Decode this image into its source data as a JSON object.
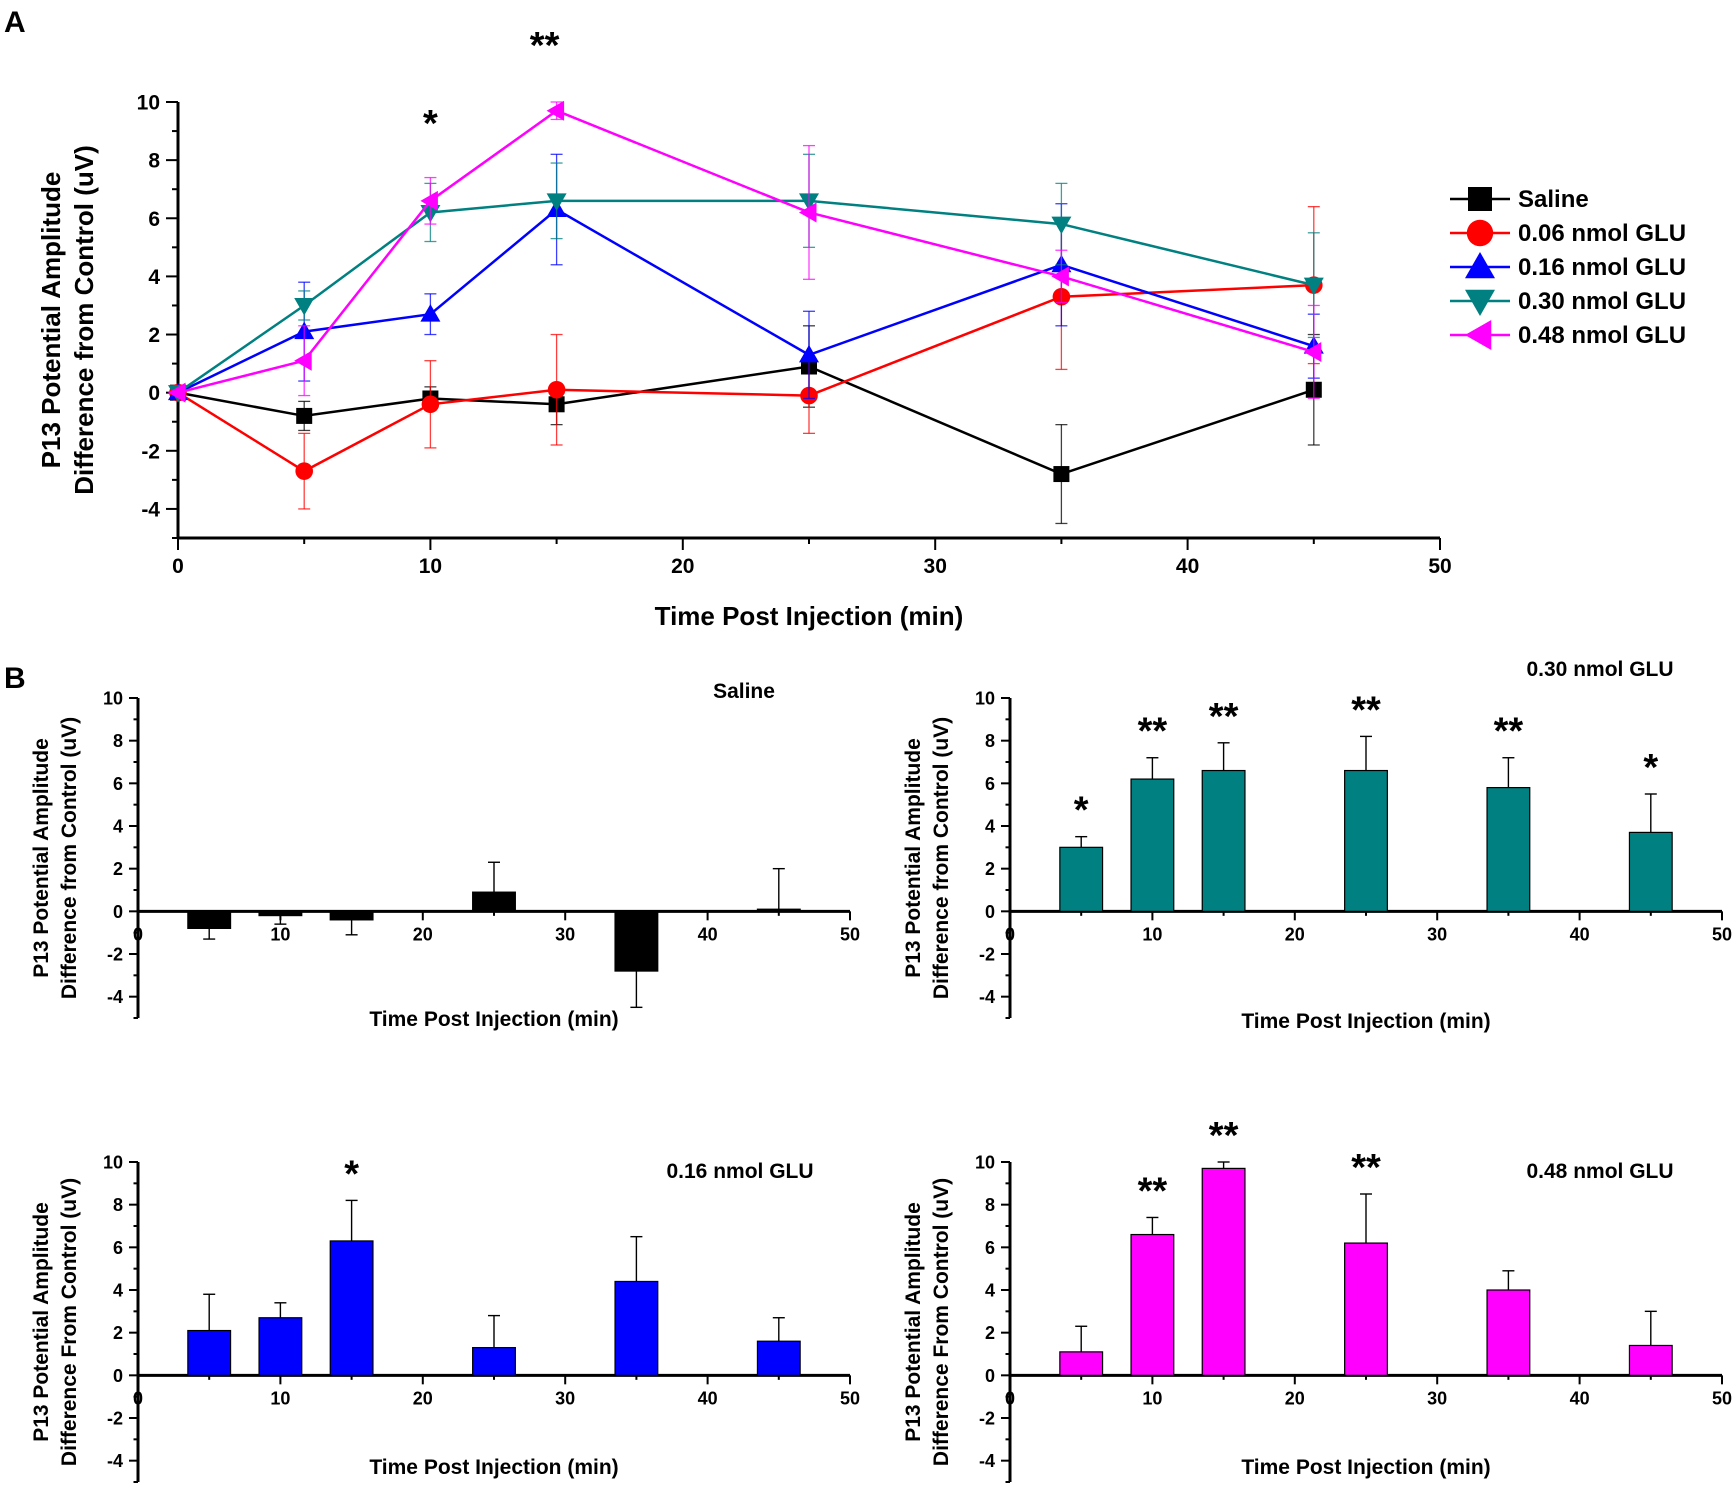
{
  "panel_labels": {
    "a": "A",
    "b": "B"
  },
  "chart_data": [
    {
      "type": "line",
      "panel": "A",
      "title": "",
      "xlabel": "Time Post Injection (min)",
      "ylabel_line1": "P13 Potential Amplitude",
      "ylabel_line2": "Difference from Control (uV)",
      "xlim": [
        0,
        50
      ],
      "ylim": [
        -5,
        10
      ],
      "x_ticks": [
        0,
        10,
        20,
        30,
        40,
        50
      ],
      "y_ticks": [
        -4,
        -2,
        0,
        2,
        4,
        6,
        8,
        10
      ],
      "x": [
        0,
        5,
        10,
        15,
        25,
        35,
        45
      ],
      "series": [
        {
          "name": "Saline",
          "color": "#000000",
          "marker": "square",
          "values": [
            0,
            -0.8,
            -0.2,
            -0.4,
            0.9,
            -2.8,
            0.1
          ],
          "errors": [
            0,
            0.5,
            0.4,
            0.7,
            1.4,
            1.7,
            1.9
          ]
        },
        {
          "name": "0.06 nmol GLU",
          "color": "#ff0000",
          "marker": "circle",
          "values": [
            0,
            -2.7,
            -0.4,
            0.1,
            -0.1,
            3.3,
            3.7
          ],
          "errors": [
            0,
            1.3,
            1.5,
            1.9,
            1.3,
            2.5,
            2.7
          ]
        },
        {
          "name": "0.16 nmol GLU",
          "color": "#0000ff",
          "marker": "triangle-up",
          "values": [
            0,
            2.1,
            2.7,
            6.3,
            1.3,
            4.4,
            1.6
          ],
          "errors": [
            0,
            1.7,
            0.7,
            1.9,
            1.5,
            2.1,
            1.1
          ]
        },
        {
          "name": "0.30 nmol GLU",
          "color": "#008080",
          "marker": "triangle-down",
          "values": [
            0,
            3.0,
            6.2,
            6.6,
            6.6,
            5.8,
            3.7
          ],
          "errors": [
            0,
            0.5,
            1.0,
            1.3,
            1.6,
            1.4,
            1.8
          ]
        },
        {
          "name": "0.48 nmol GLU",
          "color": "#ff00ff",
          "marker": "triangle-left",
          "values": [
            0,
            1.1,
            6.6,
            9.7,
            6.2,
            4.0,
            1.4
          ],
          "errors": [
            0,
            1.2,
            0.8,
            0.3,
            2.3,
            0.9,
            1.6
          ]
        }
      ],
      "annotations": [
        {
          "x": 10,
          "text": "*"
        },
        {
          "x": 15,
          "text": "**"
        }
      ],
      "legend": "right"
    },
    {
      "type": "bar",
      "panel": "B",
      "title": "Saline",
      "color": "#000000",
      "xlabel": "Time Post Injection (min)",
      "ylabel_line1": "P13 Potential Amplitude",
      "ylabel_line2": "Difference from Control (uV)",
      "xlim": [
        0,
        50
      ],
      "ylim": [
        -5,
        10
      ],
      "x_ticks": [
        0,
        10,
        20,
        30,
        40,
        50
      ],
      "y_ticks": [
        -4,
        -2,
        0,
        2,
        4,
        6,
        8,
        10
      ],
      "x": [
        5,
        10,
        15,
        25,
        35,
        45
      ],
      "values": [
        -0.8,
        -0.2,
        -0.4,
        0.9,
        -2.8,
        0.1
      ],
      "errors": [
        0.5,
        0.4,
        0.7,
        1.4,
        1.7,
        1.9
      ],
      "annotations": []
    },
    {
      "type": "bar",
      "panel": "B",
      "title": "0.30 nmol GLU",
      "color": "#008080",
      "xlabel": "Time Post Injection (min)",
      "ylabel_line1": "P13 Potential Amplitude",
      "ylabel_line2": "Difference from Control (uV)",
      "xlim": [
        0,
        50
      ],
      "ylim": [
        -5,
        10
      ],
      "x_ticks": [
        0,
        10,
        20,
        30,
        40,
        50
      ],
      "y_ticks": [
        -4,
        -2,
        0,
        2,
        4,
        6,
        8,
        10
      ],
      "x": [
        5,
        10,
        15,
        25,
        35,
        45
      ],
      "values": [
        3.0,
        6.2,
        6.6,
        6.6,
        5.8,
        3.7
      ],
      "errors": [
        0.5,
        1.0,
        1.3,
        1.6,
        1.4,
        1.8
      ],
      "annotations": [
        {
          "x": 5,
          "text": "*"
        },
        {
          "x": 10,
          "text": "**"
        },
        {
          "x": 15,
          "text": "**"
        },
        {
          "x": 25,
          "text": "**"
        },
        {
          "x": 35,
          "text": "**"
        },
        {
          "x": 45,
          "text": "*"
        }
      ]
    },
    {
      "type": "bar",
      "panel": "B",
      "title": "0.16 nmol GLU",
      "color": "#0000ff",
      "xlabel": "Time Post Injection (min)",
      "ylabel_line1": "P13 Potential Amplitude",
      "ylabel_line2": "Difference From Control (uV)",
      "xlim": [
        0,
        50
      ],
      "ylim": [
        -5,
        10
      ],
      "x_ticks": [
        0,
        10,
        20,
        30,
        40,
        50
      ],
      "y_ticks": [
        -4,
        -2,
        0,
        2,
        4,
        6,
        8,
        10
      ],
      "x": [
        5,
        10,
        15,
        25,
        35,
        45
      ],
      "values": [
        2.1,
        2.7,
        6.3,
        1.3,
        4.4,
        1.6
      ],
      "errors": [
        1.7,
        0.7,
        1.9,
        1.5,
        2.1,
        1.1
      ],
      "annotations": [
        {
          "x": 15,
          "text": "*"
        }
      ]
    },
    {
      "type": "bar",
      "panel": "B",
      "title": "0.48 nmol GLU",
      "color": "#ff00ff",
      "xlabel": "Time Post Injection (min)",
      "ylabel_line1": "P13 Potential Amplitude",
      "ylabel_line2": "Difference From Control (uV)",
      "xlim": [
        0,
        50
      ],
      "ylim": [
        -5,
        10
      ],
      "x_ticks": [
        0,
        10,
        20,
        30,
        40,
        50
      ],
      "y_ticks": [
        -4,
        -2,
        0,
        2,
        4,
        6,
        8,
        10
      ],
      "x": [
        5,
        10,
        15,
        25,
        35,
        45
      ],
      "values": [
        1.1,
        6.6,
        9.7,
        6.2,
        4.0,
        1.4
      ],
      "errors": [
        1.2,
        0.8,
        0.3,
        2.3,
        0.9,
        1.6
      ],
      "annotations": [
        {
          "x": 10,
          "text": "**"
        },
        {
          "x": 15,
          "text": "**"
        },
        {
          "x": 25,
          "text": "**"
        }
      ]
    }
  ]
}
